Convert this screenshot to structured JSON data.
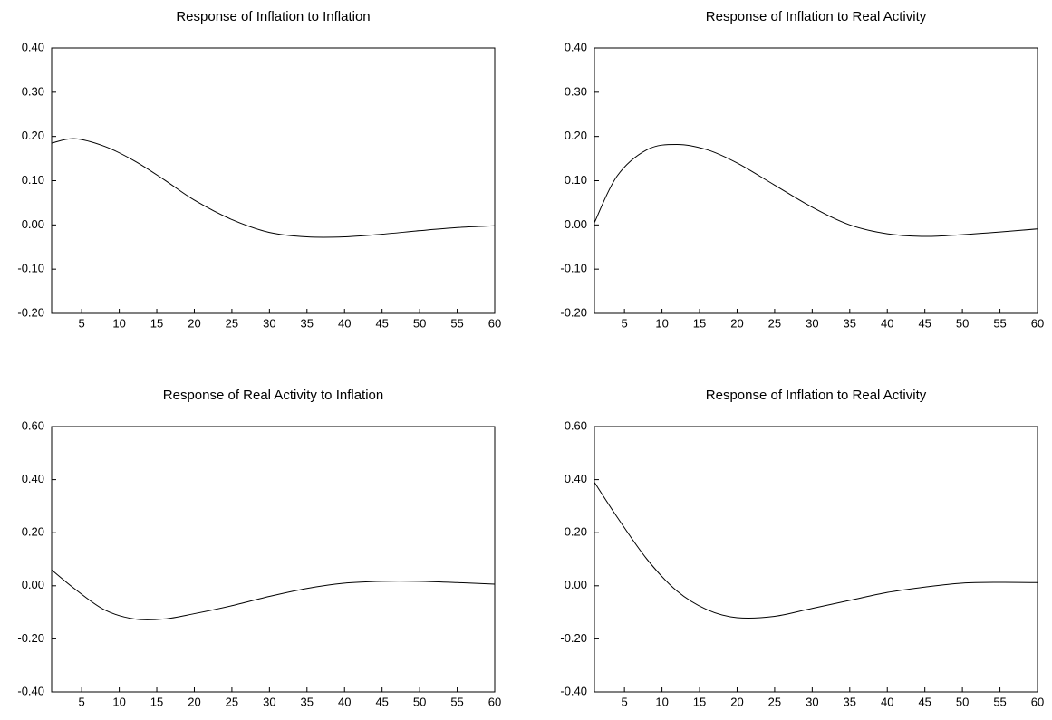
{
  "chart_data": [
    {
      "type": "line",
      "title": "Response of Inflation to Inflation",
      "x": [
        1,
        4,
        8,
        12,
        16,
        20,
        25,
        30,
        35,
        40,
        45,
        50,
        55,
        60
      ],
      "values": [
        0.185,
        0.195,
        0.178,
        0.145,
        0.102,
        0.056,
        0.012,
        -0.017,
        -0.027,
        -0.027,
        -0.021,
        -0.013,
        -0.006,
        -0.002
      ],
      "color": "#000000",
      "xlim": [
        1,
        60
      ],
      "xticks": [
        5,
        10,
        15,
        20,
        25,
        30,
        35,
        40,
        45,
        50,
        55,
        60
      ],
      "ylim": [
        -0.2,
        0.4
      ],
      "yticks": [
        {
          "value": -0.2,
          "label": "-0.20"
        },
        {
          "value": -0.1,
          "label": "-0.10"
        },
        {
          "value": 0,
          "label": "0.00"
        },
        {
          "value": 0.1,
          "label": "0.10"
        },
        {
          "value": 0.2,
          "label": "0.20"
        },
        {
          "value": 0.3,
          "label": "0.30"
        },
        {
          "value": 0.4,
          "label": "0.40"
        }
      ]
    },
    {
      "type": "line",
      "title": "Response of Inflation to Real Activity",
      "x": [
        1,
        4,
        8,
        12,
        16,
        20,
        25,
        30,
        35,
        40,
        45,
        50,
        55,
        60
      ],
      "values": [
        0.005,
        0.11,
        0.17,
        0.182,
        0.17,
        0.14,
        0.09,
        0.04,
        0.0,
        -0.02,
        -0.026,
        -0.022,
        -0.016,
        -0.009
      ],
      "color": "#000000",
      "xlim": [
        1,
        60
      ],
      "xticks": [
        5,
        10,
        15,
        20,
        25,
        30,
        35,
        40,
        45,
        50,
        55,
        60
      ],
      "ylim": [
        -0.2,
        0.4
      ],
      "yticks": [
        {
          "value": -0.2,
          "label": "-0.20"
        },
        {
          "value": -0.1,
          "label": "-0.10"
        },
        {
          "value": 0,
          "label": "0.00"
        },
        {
          "value": 0.1,
          "label": "0.10"
        },
        {
          "value": 0.2,
          "label": "0.20"
        },
        {
          "value": 0.3,
          "label": "0.30"
        },
        {
          "value": 0.4,
          "label": "0.40"
        }
      ]
    },
    {
      "type": "line",
      "title": "Response of Real Activity to Inflation",
      "x": [
        1,
        4,
        8,
        12,
        16,
        20,
        25,
        30,
        35,
        40,
        45,
        50,
        55,
        60
      ],
      "values": [
        0.06,
        -0.01,
        -0.09,
        -0.125,
        -0.125,
        -0.105,
        -0.075,
        -0.04,
        -0.01,
        0.01,
        0.017,
        0.017,
        0.012,
        0.006
      ],
      "color": "#000000",
      "xlim": [
        1,
        60
      ],
      "xticks": [
        5,
        10,
        15,
        20,
        25,
        30,
        35,
        40,
        45,
        50,
        55,
        60
      ],
      "ylim": [
        -0.4,
        0.6
      ],
      "yticks": [
        {
          "value": -0.4,
          "label": "-0.40"
        },
        {
          "value": -0.2,
          "label": "-0.20"
        },
        {
          "value": 0,
          "label": "0.00"
        },
        {
          "value": 0.2,
          "label": "0.20"
        },
        {
          "value": 0.4,
          "label": "0.40"
        },
        {
          "value": 0.6,
          "label": "0.60"
        }
      ]
    },
    {
      "type": "line",
      "title": "Response of Inflation to Real Activity",
      "x": [
        1,
        4,
        8,
        12,
        16,
        20,
        25,
        30,
        35,
        40,
        45,
        50,
        55,
        60
      ],
      "values": [
        0.39,
        0.26,
        0.1,
        -0.02,
        -0.09,
        -0.12,
        -0.115,
        -0.085,
        -0.055,
        -0.025,
        -0.005,
        0.01,
        0.013,
        0.012
      ],
      "color": "#000000",
      "xlim": [
        1,
        60
      ],
      "xticks": [
        5,
        10,
        15,
        20,
        25,
        30,
        35,
        40,
        45,
        50,
        55,
        60
      ],
      "ylim": [
        -0.4,
        0.6
      ],
      "yticks": [
        {
          "value": -0.4,
          "label": "-0.40"
        },
        {
          "value": -0.2,
          "label": "-0.20"
        },
        {
          "value": 0,
          "label": "0.00"
        },
        {
          "value": 0.2,
          "label": "0.20"
        },
        {
          "value": 0.4,
          "label": "0.40"
        },
        {
          "value": 0.6,
          "label": "0.60"
        }
      ]
    }
  ]
}
